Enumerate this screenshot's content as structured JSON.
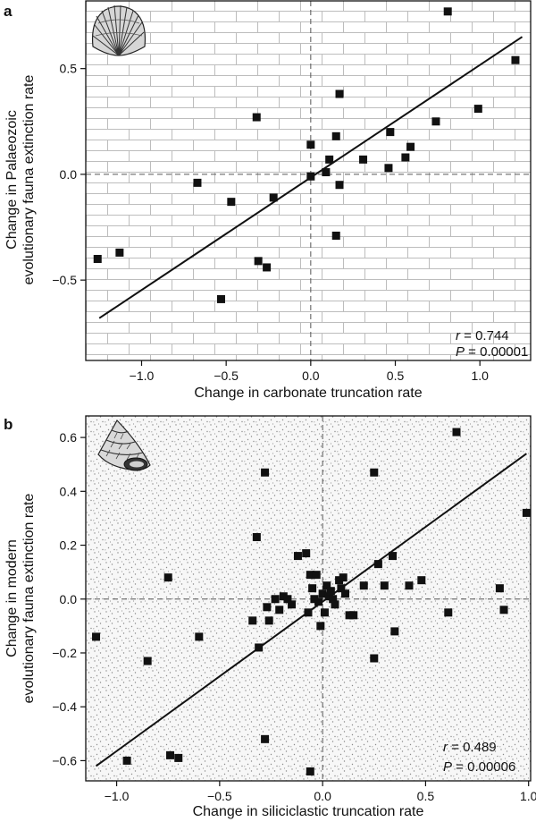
{
  "chart_data": [
    {
      "panel_label": "a",
      "type": "scatter",
      "xlabel": "Change in carbonate truncation rate",
      "ylabel_line1": "Change in Palaeozoic",
      "ylabel_line2": "evolutionary fauna extinction rate",
      "xlim": [
        -1.33,
        1.3
      ],
      "ylim": [
        -0.88,
        0.82
      ],
      "xticks": [
        -1.0,
        -0.5,
        0.0,
        0.5,
        1.0
      ],
      "xtick_labels": [
        "−1.0",
        "−0.5",
        "0.0",
        "0.5",
        "1.0"
      ],
      "yticks": [
        -0.5,
        0.0,
        0.5
      ],
      "ytick_labels": [
        "−0.5",
        "0.0",
        "0.5"
      ],
      "background": "brick",
      "icon": "brachiopod-shell-icon",
      "fit_line": {
        "x": [
          -1.25,
          1.25
        ],
        "y": [
          -0.68,
          0.65
        ]
      },
      "stats": {
        "r_label": "r",
        "r_value": " = 0.744",
        "p_label": "P",
        "p_value": " = 0.00001"
      },
      "points": [
        [
          -1.26,
          -0.4
        ],
        [
          -1.13,
          -0.37
        ],
        [
          -0.67,
          -0.04
        ],
        [
          -0.47,
          -0.13
        ],
        [
          -0.53,
          -0.59
        ],
        [
          -0.32,
          0.27
        ],
        [
          -0.31,
          -0.41
        ],
        [
          -0.26,
          -0.44
        ],
        [
          -0.22,
          -0.11
        ],
        [
          0.0,
          -0.01
        ],
        [
          0.0,
          0.14
        ],
        [
          0.09,
          0.01
        ],
        [
          0.11,
          0.07
        ],
        [
          0.15,
          -0.29
        ],
        [
          0.15,
          0.18
        ],
        [
          0.17,
          -0.05
        ],
        [
          0.17,
          0.38
        ],
        [
          0.31,
          0.07
        ],
        [
          0.46,
          0.03
        ],
        [
          0.47,
          0.2
        ],
        [
          0.56,
          0.08
        ],
        [
          0.59,
          0.13
        ],
        [
          0.74,
          0.25
        ],
        [
          0.81,
          0.77
        ],
        [
          0.99,
          0.31
        ],
        [
          1.21,
          0.54
        ]
      ]
    },
    {
      "panel_label": "b",
      "type": "scatter",
      "xlabel": "Change in siliciclastic truncation rate",
      "ylabel_line1": "Change in modern",
      "ylabel_line2": "evolutionary fauna extinction rate",
      "xlim": [
        -1.15,
        1.01
      ],
      "ylim": [
        -0.675,
        0.68
      ],
      "xticks": [
        -1.0,
        -0.5,
        0.0,
        0.5,
        1.0
      ],
      "xtick_labels": [
        "−1.0",
        "−0.5",
        "0.0",
        "0.5",
        "1.0"
      ],
      "yticks": [
        -0.6,
        -0.4,
        -0.2,
        0.0,
        0.2,
        0.4,
        0.6
      ],
      "ytick_labels": [
        "−0.6",
        "−0.4",
        "−0.2",
        "0.0",
        "0.2",
        "0.4",
        "0.6"
      ],
      "background": "stipple",
      "icon": "gastropod-shell-icon",
      "fit_line": {
        "x": [
          -1.1,
          0.99
        ],
        "y": [
          -0.62,
          0.54
        ]
      },
      "stats": {
        "r_label": "r",
        "r_value": " = 0.489",
        "p_label": "P",
        "p_value": " = 0.00006"
      },
      "points": [
        [
          -1.1,
          -0.14
        ],
        [
          -0.95,
          -0.6
        ],
        [
          -0.85,
          -0.23
        ],
        [
          -0.75,
          0.08
        ],
        [
          -0.74,
          -0.58
        ],
        [
          -0.7,
          -0.59
        ],
        [
          -0.6,
          -0.14
        ],
        [
          -0.34,
          -0.08
        ],
        [
          -0.32,
          0.23
        ],
        [
          -0.31,
          -0.18
        ],
        [
          -0.28,
          0.47
        ],
        [
          -0.28,
          -0.52
        ],
        [
          -0.27,
          -0.03
        ],
        [
          -0.26,
          -0.08
        ],
        [
          -0.23,
          0.0
        ],
        [
          -0.21,
          -0.04
        ],
        [
          -0.19,
          0.01
        ],
        [
          -0.17,
          0.0
        ],
        [
          -0.15,
          -0.02
        ],
        [
          -0.12,
          0.16
        ],
        [
          -0.08,
          0.17
        ],
        [
          -0.07,
          -0.05
        ],
        [
          -0.06,
          0.09
        ],
        [
          -0.06,
          -0.64
        ],
        [
          -0.05,
          0.04
        ],
        [
          -0.04,
          0.0
        ],
        [
          -0.03,
          0.09
        ],
        [
          -0.02,
          -0.01
        ],
        [
          -0.01,
          -0.1
        ],
        [
          0.0,
          0.02
        ],
        [
          0.01,
          -0.05
        ],
        [
          0.02,
          0.05
        ],
        [
          0.03,
          0.01
        ],
        [
          0.04,
          0.03
        ],
        [
          0.05,
          0.0
        ],
        [
          0.06,
          -0.02
        ],
        [
          0.08,
          0.07
        ],
        [
          0.09,
          0.04
        ],
        [
          0.1,
          0.08
        ],
        [
          0.11,
          0.02
        ],
        [
          0.13,
          -0.06
        ],
        [
          0.15,
          -0.06
        ],
        [
          0.2,
          0.05
        ],
        [
          0.25,
          0.47
        ],
        [
          0.25,
          -0.22
        ],
        [
          0.27,
          0.13
        ],
        [
          0.3,
          0.05
        ],
        [
          0.34,
          0.16
        ],
        [
          0.35,
          -0.12
        ],
        [
          0.42,
          0.05
        ],
        [
          0.48,
          0.07
        ],
        [
          0.61,
          -0.05
        ],
        [
          0.65,
          0.62
        ],
        [
          0.86,
          0.04
        ],
        [
          0.88,
          -0.04
        ],
        [
          0.99,
          0.32
        ]
      ]
    }
  ]
}
